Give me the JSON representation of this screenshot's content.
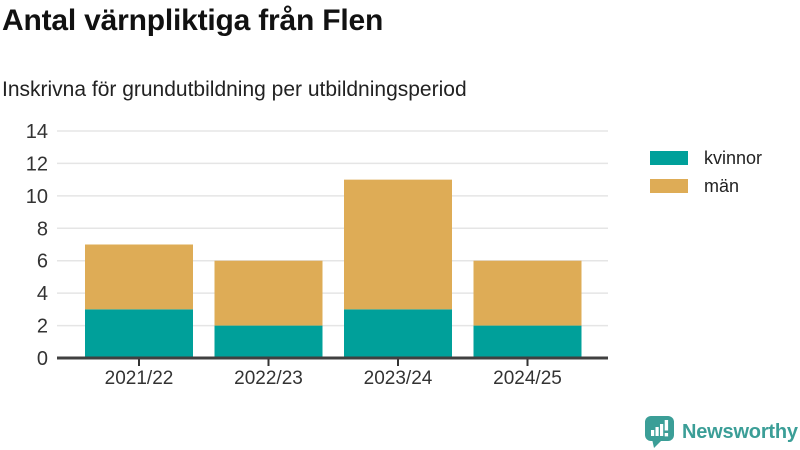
{
  "header": {
    "title": "Antal värnpliktiga från Flen",
    "subtitle": "Inskrivna för grundutbildning per utbildningsperiod"
  },
  "chart_data": {
    "type": "bar",
    "stacked": true,
    "categories": [
      "2021/22",
      "2022/23",
      "2023/24",
      "2024/25"
    ],
    "series": [
      {
        "name": "kvinnor",
        "color": "#00a09a",
        "values": [
          3,
          2,
          3,
          2
        ]
      },
      {
        "name": "män",
        "color": "#deac56",
        "values": [
          4,
          4,
          8,
          4
        ]
      }
    ],
    "totals": [
      7,
      6,
      11,
      6
    ],
    "title": "Antal värnpliktiga från Flen",
    "subtitle": "Inskrivna för grundutbildning per utbildningsperiod",
    "xlabel": "",
    "ylabel": "",
    "ylim": [
      0,
      14
    ],
    "yticks": [
      0,
      2,
      4,
      6,
      8,
      10,
      12,
      14
    ],
    "grid": true,
    "legend_position": "right"
  },
  "footer": {
    "brand": "Newsworthy"
  },
  "colors": {
    "kvinnor": "#00a09a",
    "man": "#deac56",
    "brand": "#3b9e97",
    "grid": "#e5e5e5",
    "axis": "#404040",
    "tick_text": "#333333"
  }
}
